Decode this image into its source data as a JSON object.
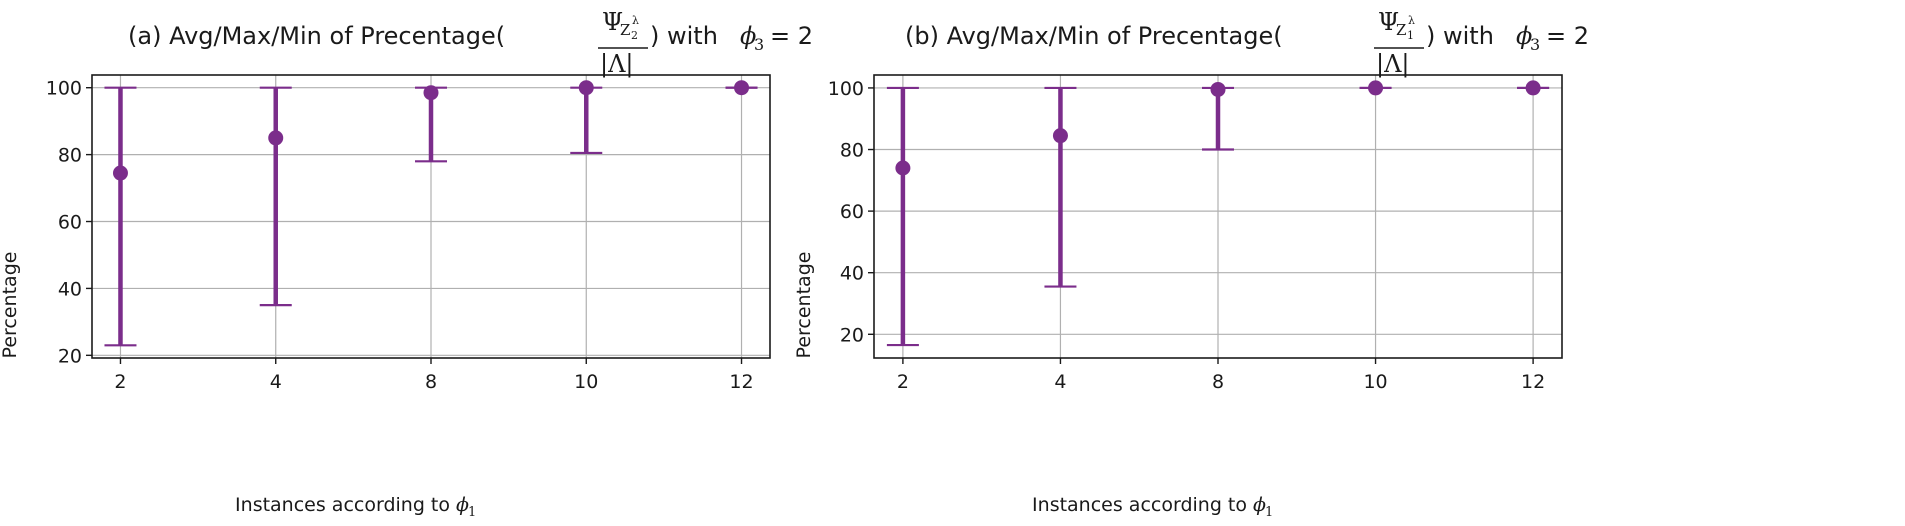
{
  "figure": {
    "color": "#7b2d8b",
    "gridColor": "#b0b0b0"
  },
  "chart_data": [
    {
      "type": "errorbar",
      "title_prefix": "(a) Avg/Max/Min of Precentage(",
      "title_suffix": ") with",
      "title_fraction": {
        "numerator": "Ψ",
        "subscript": "Z",
        "subscript_index": "2",
        "superscript": "λ",
        "denominator": "|Λ|"
      },
      "title_condition": {
        "symbol": "ϕ",
        "index": "3",
        "rhs": "= 2"
      },
      "xlabel": "Instances according to",
      "xlabel_symbol": {
        "symbol": "ϕ",
        "index": "1"
      },
      "ylabel": "Percentage",
      "categories": [
        "2",
        "4",
        "8",
        "10",
        "12"
      ],
      "avg": [
        74.5,
        85,
        98.5,
        100,
        100
      ],
      "max": [
        100,
        100,
        100,
        100,
        100
      ],
      "min": [
        23,
        35,
        78,
        80.5,
        100
      ],
      "yticks": [
        20,
        40,
        60,
        80,
        100
      ],
      "ylim": [
        19.2,
        103.8
      ],
      "grid": true
    },
    {
      "type": "errorbar",
      "title_prefix": "(b) Avg/Max/Min of Precentage(",
      "title_suffix": ") with",
      "title_fraction": {
        "numerator": "Ψ",
        "subscript": "Z",
        "subscript_index": "1",
        "superscript": "λ",
        "denominator": "|Λ|"
      },
      "title_condition": {
        "symbol": "ϕ",
        "index": "3",
        "rhs": "= 2"
      },
      "xlabel": "Instances according to",
      "xlabel_symbol": {
        "symbol": "ϕ",
        "index": "1"
      },
      "ylabel": "Percentage",
      "categories": [
        "2",
        "4",
        "8",
        "10",
        "12"
      ],
      "avg": [
        74,
        84.5,
        99.5,
        100,
        100
      ],
      "max": [
        100,
        100,
        100,
        100,
        100
      ],
      "min": [
        16.5,
        35.5,
        80,
        100,
        100
      ],
      "yticks": [
        20,
        40,
        60,
        80,
        100
      ],
      "ylim": [
        12.3,
        104.2
      ],
      "grid": true
    }
  ]
}
